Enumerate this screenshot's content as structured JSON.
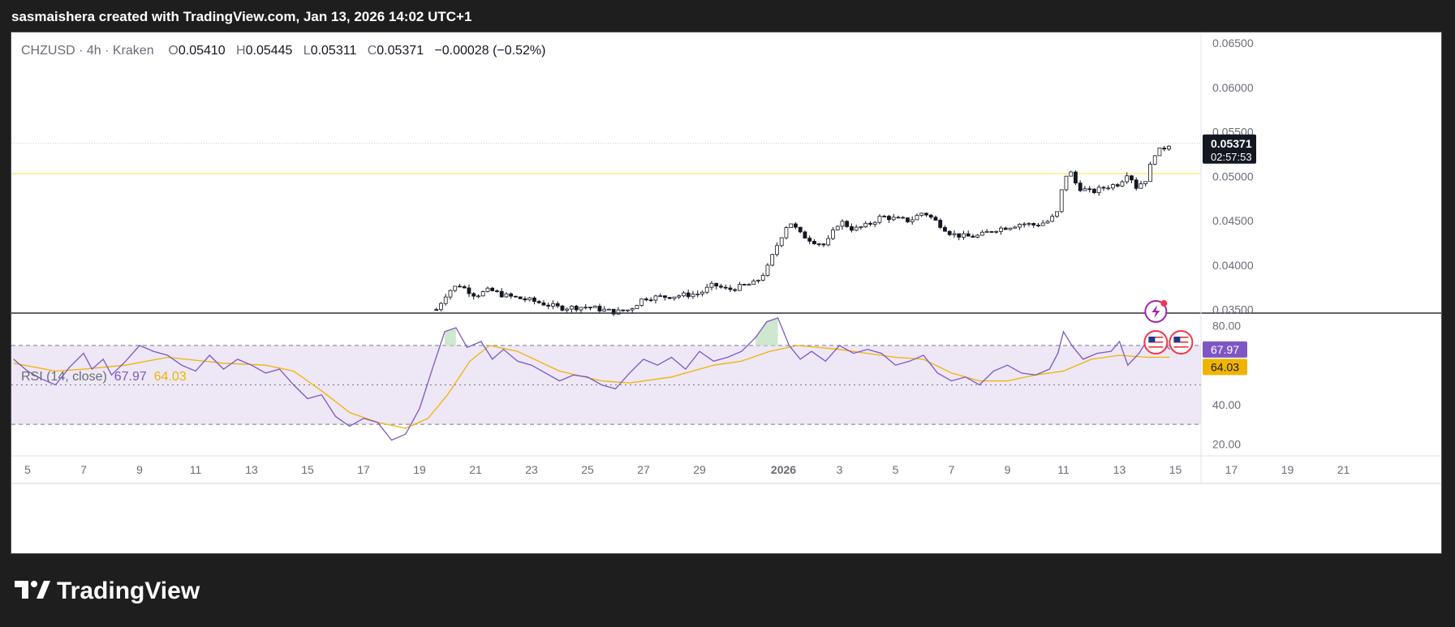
{
  "header": {
    "text": "sasmaishera created with TradingView.com, Jan 13, 2026 14:02 UTC+1"
  },
  "legend": {
    "symbol": "CHZUSD",
    "interval": "4h",
    "exchange": "Kraken",
    "separator": " · ",
    "open_label": "O",
    "open": "0.05410",
    "high_label": "H",
    "high": "0.05445",
    "low_label": "L",
    "low": "0.05311",
    "close_label": "C",
    "close": "0.05371",
    "change": "−0.00028 (−0.52%)"
  },
  "rsi_legend": {
    "label": "RSI (14, close)",
    "rsi_value": "67.97",
    "ma_value": "64.03"
  },
  "price_tag": {
    "price": "0.05371",
    "countdown": "02:57:53"
  },
  "rsi_tags": {
    "rsi": "67.97",
    "ma": "64.03"
  },
  "footer": {
    "brand": "TradingView"
  },
  "colors": {
    "candle": "#131722",
    "rsi_line": "#7e57c2",
    "rsi_ma": "#f0b400",
    "rsi_band": "#ede7f6",
    "overbought_fill": "#c8e6c9",
    "oversold_fill": "#ffcdd2",
    "yellow_line": "#f5e342",
    "price_dotted": "#c8c8c8"
  },
  "chart_data": [
    {
      "type": "candlestick",
      "symbol": "CHZUSD",
      "price_axis_ticks": [
        "0.06500",
        "0.06000",
        "0.05500",
        "0.05000",
        "0.04500",
        "0.04000",
        "0.03500"
      ],
      "price_range": [
        0.0346,
        0.0662
      ],
      "last_price": 0.05371,
      "level_line": 0.0503,
      "x_ticks": [
        "5",
        "7",
        "9",
        "11",
        "13",
        "15",
        "17",
        "19",
        "21",
        "23",
        "25",
        "27",
        "29",
        "2026",
        "3",
        "5",
        "7",
        "9",
        "11",
        "13",
        "15",
        "17",
        "19",
        "21"
      ],
      "x_tick_days": [
        5,
        7,
        9,
        11,
        13,
        15,
        17,
        19,
        21,
        23,
        25,
        27,
        29,
        32,
        34,
        36,
        38,
        40,
        42,
        44,
        46,
        48,
        50,
        52
      ],
      "close_path": [
        {
          "day": 19.6,
          "close": 0.035
        },
        {
          "day": 20.0,
          "close": 0.037
        },
        {
          "day": 20.4,
          "close": 0.0378
        },
        {
          "day": 21.0,
          "close": 0.0366
        },
        {
          "day": 21.5,
          "close": 0.0372
        },
        {
          "day": 22.0,
          "close": 0.0366
        },
        {
          "day": 23.0,
          "close": 0.036
        },
        {
          "day": 24.0,
          "close": 0.0352
        },
        {
          "day": 25.0,
          "close": 0.0353
        },
        {
          "day": 26.0,
          "close": 0.0347
        },
        {
          "day": 26.5,
          "close": 0.035
        },
        {
          "day": 27.0,
          "close": 0.0363
        },
        {
          "day": 28.0,
          "close": 0.0365
        },
        {
          "day": 29.0,
          "close": 0.0368
        },
        {
          "day": 29.5,
          "close": 0.0378
        },
        {
          "day": 30.0,
          "close": 0.0372
        },
        {
          "day": 31.0,
          "close": 0.038
        },
        {
          "day": 31.4,
          "close": 0.0395
        },
        {
          "day": 31.8,
          "close": 0.0425
        },
        {
          "day": 32.2,
          "close": 0.045
        },
        {
          "day": 32.6,
          "close": 0.0435
        },
        {
          "day": 33.0,
          "close": 0.0428
        },
        {
          "day": 33.5,
          "close": 0.0422
        },
        {
          "day": 34.0,
          "close": 0.045
        },
        {
          "day": 34.5,
          "close": 0.044
        },
        {
          "day": 35.0,
          "close": 0.0445
        },
        {
          "day": 35.5,
          "close": 0.0455
        },
        {
          "day": 36.0,
          "close": 0.0452
        },
        {
          "day": 36.5,
          "close": 0.045
        },
        {
          "day": 37.0,
          "close": 0.046
        },
        {
          "day": 37.5,
          "close": 0.0448
        },
        {
          "day": 38.0,
          "close": 0.0435
        },
        {
          "day": 38.5,
          "close": 0.0432
        },
        {
          "day": 39.0,
          "close": 0.0433
        },
        {
          "day": 39.5,
          "close": 0.044
        },
        {
          "day": 40.0,
          "close": 0.0443
        },
        {
          "day": 40.5,
          "close": 0.0447
        },
        {
          "day": 41.0,
          "close": 0.0445
        },
        {
          "day": 41.5,
          "close": 0.045
        },
        {
          "day": 41.8,
          "close": 0.046
        },
        {
          "day": 42.0,
          "close": 0.0495
        },
        {
          "day": 42.2,
          "close": 0.0508
        },
        {
          "day": 42.5,
          "close": 0.0488
        },
        {
          "day": 43.0,
          "close": 0.0482
        },
        {
          "day": 43.5,
          "close": 0.0488
        },
        {
          "day": 44.0,
          "close": 0.0492
        },
        {
          "day": 44.3,
          "close": 0.0505
        },
        {
          "day": 44.6,
          "close": 0.0488
        },
        {
          "day": 45.0,
          "close": 0.0498
        },
        {
          "day": 45.2,
          "close": 0.0525
        },
        {
          "day": 45.5,
          "close": 0.053
        },
        {
          "day": 45.8,
          "close": 0.0537
        }
      ]
    },
    {
      "type": "line",
      "title": "RSI (14, close)",
      "y_ticks": [
        "80.00",
        "60.00",
        "40.00",
        "20.00"
      ],
      "y_range": [
        14,
        86
      ],
      "bands": {
        "upper": 70,
        "middle": 50,
        "lower": 30
      },
      "x_tick_days": [
        5,
        7,
        9,
        11,
        13,
        15,
        17,
        19,
        21,
        23,
        25,
        27,
        29,
        32,
        34,
        36,
        38,
        40,
        42,
        44,
        46,
        48,
        50,
        52
      ],
      "series": [
        {
          "name": "RSI",
          "points": [
            {
              "day": 4.5,
              "rsi": 63
            },
            {
              "day": 5.0,
              "rsi": 57
            },
            {
              "day": 5.5,
              "rsi": 53
            },
            {
              "day": 6.0,
              "rsi": 50
            },
            {
              "day": 6.5,
              "rsi": 59
            },
            {
              "day": 7.0,
              "rsi": 66
            },
            {
              "day": 7.3,
              "rsi": 58
            },
            {
              "day": 7.7,
              "rsi": 63
            },
            {
              "day": 8.0,
              "rsi": 55
            },
            {
              "day": 8.5,
              "rsi": 62
            },
            {
              "day": 9.0,
              "rsi": 70
            },
            {
              "day": 9.5,
              "rsi": 67
            },
            {
              "day": 10.0,
              "rsi": 65
            },
            {
              "day": 10.5,
              "rsi": 60
            },
            {
              "day": 11.0,
              "rsi": 57
            },
            {
              "day": 11.5,
              "rsi": 65
            },
            {
              "day": 12.0,
              "rsi": 58
            },
            {
              "day": 12.5,
              "rsi": 63
            },
            {
              "day": 13.0,
              "rsi": 60
            },
            {
              "day": 13.5,
              "rsi": 56
            },
            {
              "day": 14.0,
              "rsi": 58
            },
            {
              "day": 14.5,
              "rsi": 50
            },
            {
              "day": 15.0,
              "rsi": 43
            },
            {
              "day": 15.5,
              "rsi": 45
            },
            {
              "day": 16.0,
              "rsi": 34
            },
            {
              "day": 16.5,
              "rsi": 29
            },
            {
              "day": 17.0,
              "rsi": 33
            },
            {
              "day": 17.5,
              "rsi": 31
            },
            {
              "day": 18.0,
              "rsi": 22
            },
            {
              "day": 18.5,
              "rsi": 25
            },
            {
              "day": 19.0,
              "rsi": 38
            },
            {
              "day": 19.5,
              "rsi": 60
            },
            {
              "day": 19.9,
              "rsi": 77
            },
            {
              "day": 20.3,
              "rsi": 79
            },
            {
              "day": 20.7,
              "rsi": 69
            },
            {
              "day": 21.2,
              "rsi": 72
            },
            {
              "day": 21.6,
              "rsi": 63
            },
            {
              "day": 22.0,
              "rsi": 68
            },
            {
              "day": 22.5,
              "rsi": 62
            },
            {
              "day": 23.0,
              "rsi": 60
            },
            {
              "day": 23.5,
              "rsi": 56
            },
            {
              "day": 24.0,
              "rsi": 52
            },
            {
              "day": 24.5,
              "rsi": 55
            },
            {
              "day": 25.0,
              "rsi": 54
            },
            {
              "day": 25.5,
              "rsi": 50
            },
            {
              "day": 26.0,
              "rsi": 48
            },
            {
              "day": 26.5,
              "rsi": 56
            },
            {
              "day": 27.0,
              "rsi": 63
            },
            {
              "day": 27.5,
              "rsi": 60
            },
            {
              "day": 28.0,
              "rsi": 64
            },
            {
              "day": 28.5,
              "rsi": 58
            },
            {
              "day": 29.0,
              "rsi": 67
            },
            {
              "day": 29.5,
              "rsi": 62
            },
            {
              "day": 30.0,
              "rsi": 64
            },
            {
              "day": 30.5,
              "rsi": 67
            },
            {
              "day": 31.0,
              "rsi": 74
            },
            {
              "day": 31.4,
              "rsi": 82
            },
            {
              "day": 31.8,
              "rsi": 84
            },
            {
              "day": 32.2,
              "rsi": 70
            },
            {
              "day": 32.6,
              "rsi": 63
            },
            {
              "day": 33.0,
              "rsi": 67
            },
            {
              "day": 33.5,
              "rsi": 62
            },
            {
              "day": 34.0,
              "rsi": 70
            },
            {
              "day": 34.5,
              "rsi": 66
            },
            {
              "day": 35.0,
              "rsi": 68
            },
            {
              "day": 35.5,
              "rsi": 66
            },
            {
              "day": 36.0,
              "rsi": 60
            },
            {
              "day": 36.5,
              "rsi": 62
            },
            {
              "day": 37.0,
              "rsi": 65
            },
            {
              "day": 37.5,
              "rsi": 56
            },
            {
              "day": 38.0,
              "rsi": 52
            },
            {
              "day": 38.5,
              "rsi": 54
            },
            {
              "day": 39.0,
              "rsi": 50
            },
            {
              "day": 39.5,
              "rsi": 57
            },
            {
              "day": 40.0,
              "rsi": 60
            },
            {
              "day": 40.5,
              "rsi": 56
            },
            {
              "day": 41.0,
              "rsi": 55
            },
            {
              "day": 41.5,
              "rsi": 58
            },
            {
              "day": 41.8,
              "rsi": 66
            },
            {
              "day": 42.0,
              "rsi": 77
            },
            {
              "day": 42.3,
              "rsi": 70
            },
            {
              "day": 42.7,
              "rsi": 63
            },
            {
              "day": 43.2,
              "rsi": 66
            },
            {
              "day": 43.7,
              "rsi": 67
            },
            {
              "day": 44.0,
              "rsi": 72
            },
            {
              "day": 44.3,
              "rsi": 60
            },
            {
              "day": 44.7,
              "rsi": 66
            },
            {
              "day": 45.0,
              "rsi": 73
            },
            {
              "day": 45.3,
              "rsi": 68
            },
            {
              "day": 45.6,
              "rsi": 71
            },
            {
              "day": 45.8,
              "rsi": 67.97
            }
          ]
        },
        {
          "name": "RSI-based MA",
          "points": [
            {
              "day": 4.5,
              "rsi": 61
            },
            {
              "day": 6.0,
              "rsi": 57
            },
            {
              "day": 7.0,
              "rsi": 58
            },
            {
              "day": 8.5,
              "rsi": 60
            },
            {
              "day": 10.0,
              "rsi": 64
            },
            {
              "day": 12.0,
              "rsi": 61
            },
            {
              "day": 13.5,
              "rsi": 60
            },
            {
              "day": 14.5,
              "rsi": 57
            },
            {
              "day": 15.5,
              "rsi": 47
            },
            {
              "day": 16.5,
              "rsi": 36
            },
            {
              "day": 17.5,
              "rsi": 31
            },
            {
              "day": 18.5,
              "rsi": 28
            },
            {
              "day": 19.3,
              "rsi": 33
            },
            {
              "day": 20.0,
              "rsi": 45
            },
            {
              "day": 20.8,
              "rsi": 62
            },
            {
              "day": 21.5,
              "rsi": 70
            },
            {
              "day": 22.5,
              "rsi": 67
            },
            {
              "day": 24.0,
              "rsi": 57
            },
            {
              "day": 25.5,
              "rsi": 52
            },
            {
              "day": 26.5,
              "rsi": 51
            },
            {
              "day": 28.0,
              "rsi": 54
            },
            {
              "day": 29.5,
              "rsi": 60
            },
            {
              "day": 30.5,
              "rsi": 62
            },
            {
              "day": 31.5,
              "rsi": 67
            },
            {
              "day": 32.5,
              "rsi": 70
            },
            {
              "day": 34.0,
              "rsi": 68
            },
            {
              "day": 36.0,
              "rsi": 64
            },
            {
              "day": 37.0,
              "rsi": 63
            },
            {
              "day": 38.0,
              "rsi": 56
            },
            {
              "day": 39.0,
              "rsi": 52
            },
            {
              "day": 40.0,
              "rsi": 52
            },
            {
              "day": 41.0,
              "rsi": 55
            },
            {
              "day": 42.0,
              "rsi": 57
            },
            {
              "day": 43.0,
              "rsi": 63
            },
            {
              "day": 44.0,
              "rsi": 65
            },
            {
              "day": 45.0,
              "rsi": 64
            },
            {
              "day": 45.8,
              "rsi": 64.03
            }
          ]
        }
      ]
    }
  ]
}
